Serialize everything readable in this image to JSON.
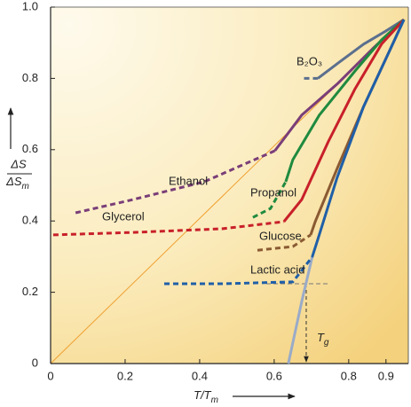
{
  "chart_data": {
    "type": "line",
    "xlabel": "T/T",
    "xlabel_sub": "m",
    "ylabel_num": "ΔS",
    "ylabel_den": "ΔS",
    "ylabel_den_sub": "m",
    "xlim": [
      0,
      0.96
    ],
    "ylim": [
      0,
      1
    ],
    "xticks": [
      0,
      0.2,
      0.4,
      0.6,
      0.8,
      0.9
    ],
    "yticks": [
      0,
      0.2,
      0.4,
      0.6,
      0.8,
      {
        "value": 1,
        "label": "1.0"
      }
    ],
    "series": [
      {
        "name": "B₂O₃",
        "color": "#5b6f8e",
        "extrapolated": {
          "x": [
            0.68,
            0.717
          ],
          "values": [
            0.8,
            0.8
          ]
        },
        "measured": {
          "x": [
            0.717,
            0.769,
            0.84,
            0.9,
            0.948
          ],
          "values": [
            0.8,
            0.841,
            0.896,
            0.933,
            0.965
          ]
        }
      },
      {
        "name": "Ethanol",
        "color": "#7a3e78",
        "extrapolated": {
          "x": [
            0.067,
            0.221,
            0.412,
            0.602
          ],
          "values": [
            0.423,
            0.46,
            0.51,
            0.597
          ]
        },
        "measured": {
          "x": [
            0.602,
            0.674,
            0.769,
            0.864,
            0.948
          ],
          "values": [
            0.597,
            0.697,
            0.784,
            0.883,
            0.965
          ]
        }
      },
      {
        "name": "Propanol",
        "color": "#1f8a3f",
        "extrapolated": {
          "x": [
            0.543,
            0.59,
            0.631
          ],
          "values": [
            0.41,
            0.435,
            0.51
          ]
        },
        "measured": {
          "x": [
            0.631,
            0.65,
            0.721,
            0.817,
            0.888,
            0.948
          ],
          "values": [
            0.51,
            0.572,
            0.697,
            0.821,
            0.908,
            0.965
          ]
        }
      },
      {
        "name": "Glycerol",
        "color": "#c8202a",
        "extrapolated": {
          "x": [
            0.007,
            0.221,
            0.46,
            0.626
          ],
          "values": [
            0.361,
            0.368,
            0.378,
            0.398
          ]
        },
        "measured": {
          "x": [
            0.626,
            0.674,
            0.745,
            0.817,
            0.888,
            0.948
          ],
          "values": [
            0.398,
            0.46,
            0.622,
            0.771,
            0.896,
            0.965
          ]
        }
      },
      {
        "name": "Glucose",
        "color": "#8a5a32",
        "extrapolated": {
          "x": [
            0.555,
            0.65,
            0.698
          ],
          "values": [
            0.318,
            0.328,
            0.361
          ]
        },
        "measured": {
          "x": [
            0.698,
            0.71,
            0.769,
            0.84,
            0.912,
            0.948
          ],
          "values": [
            0.361,
            0.398,
            0.547,
            0.721,
            0.883,
            0.965
          ]
        }
      },
      {
        "name": "Lactic acid",
        "color": "#1f5fa8",
        "extrapolated": {
          "x": [
            0.305,
            0.46,
            0.65,
            0.702
          ],
          "values": [
            0.224,
            0.224,
            0.229,
            0.299
          ]
        },
        "measured": {
          "x": [
            0.702,
            0.717,
            0.769,
            0.84,
            0.912,
            0.948
          ],
          "values": [
            0.299,
            0.348,
            0.522,
            0.721,
            0.883,
            0.965
          ]
        },
        "extension": {
          "color": "#9aabc8",
          "x": [
            0.702,
            0.674,
            0.638
          ],
          "values": [
            0.299,
            0.174,
            0
          ]
        }
      }
    ],
    "tg": {
      "label": "T",
      "label_sub": "g",
      "x": 0.686,
      "y": 0.224
    }
  }
}
